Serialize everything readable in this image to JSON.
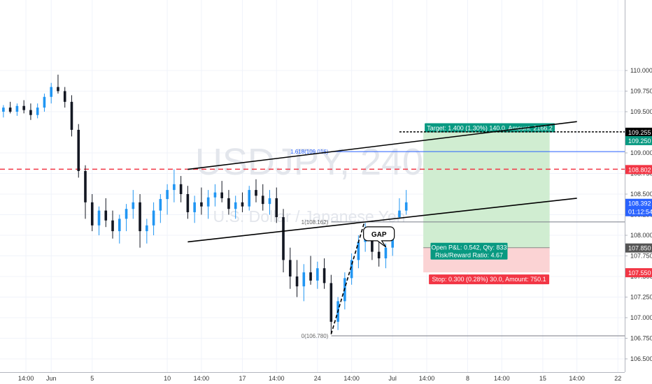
{
  "chart_data": {
    "type": "candlestick",
    "watermark": {
      "symbol": "USDJPY, 240",
      "description": "U.S. Dollar / Japanese Yen"
    },
    "y_axis": {
      "ticks": [
        "110.000",
        "109.750",
        "109.500",
        "109.000",
        "108.750",
        "108.500",
        "108.250",
        "108.000",
        "107.750",
        "107.500",
        "107.250",
        "107.000",
        "106.750",
        "106.500"
      ],
      "tick_values": [
        110.0,
        109.75,
        109.5,
        109.0,
        108.75,
        108.5,
        108.25,
        108.0,
        107.75,
        107.5,
        107.25,
        107.0,
        106.75,
        106.5
      ],
      "ylim": [
        106.5,
        110.1
      ]
    },
    "x_axis": {
      "ticks": [
        {
          "label": "14:00",
          "x": 0.3
        },
        {
          "label": "Jun",
          "x": 4.0
        },
        {
          "label": "5",
          "x": 10.0
        },
        {
          "label": "10",
          "x": 21.0
        },
        {
          "label": "14:00",
          "x": 26.0
        },
        {
          "label": "17",
          "x": 32.0
        },
        {
          "label": "14:00",
          "x": 37.0
        },
        {
          "label": "24",
          "x": 43.0
        },
        {
          "label": "14:00",
          "x": 48.0
        },
        {
          "label": "Jul",
          "x": 54.0
        },
        {
          "label": "14:00",
          "x": 59.0
        },
        {
          "label": "8",
          "x": 65.0
        },
        {
          "label": "14:00",
          "x": 70.0
        },
        {
          "label": "15",
          "x": 76.0
        },
        {
          "label": "14:00",
          "x": 81.0
        },
        {
          "label": "22",
          "x": 87.0
        }
      ],
      "xlim": [
        -3.5,
        88.0
      ]
    },
    "price_labels": [
      {
        "value": 109.255,
        "text": "109.255",
        "color": "#000000"
      },
      {
        "value": 109.25,
        "text": "109.250",
        "color": "#089981"
      },
      {
        "value": 108.802,
        "text": "108.802",
        "color": "#f23645"
      },
      {
        "value": 108.392,
        "text": "108.392",
        "color": "#2962ff"
      },
      {
        "value": 108.28,
        "text": "01:12:54",
        "color": "#2962ff"
      },
      {
        "value": 107.85,
        "text": "107.850",
        "color": "#555555"
      },
      {
        "value": 107.55,
        "text": "107.550",
        "color": "#f23645"
      }
    ],
    "levels": [
      {
        "label": "1.618(109.016)",
        "value": 109.016,
        "from": 45.0,
        "to": 88.0,
        "color": "#2962ff"
      },
      {
        "label": "1(108.162)",
        "value": 108.162,
        "from": 45.0,
        "to": 88.0,
        "color": "#787b86"
      },
      {
        "label": "0(106.780)",
        "value": 106.78,
        "from": 45.0,
        "to": 88.0,
        "color": "#787b86"
      },
      {
        "label": "",
        "value": 108.802,
        "from": -3.5,
        "to": 88.0,
        "color": "#f23645",
        "dashed": true
      },
      {
        "label": "",
        "value": 109.255,
        "from": 55.0,
        "to": 88.0,
        "color": "#000000",
        "dashed": true
      }
    ],
    "trend_lines": [
      {
        "x1": 24.0,
        "y1": 108.8,
        "x2": 81.0,
        "y2": 109.38
      },
      {
        "x1": 24.0,
        "y1": 107.92,
        "x2": 81.0,
        "y2": 108.45
      }
    ],
    "fib_anchor": {
      "x1": 45.0,
      "y1": 106.8,
      "x2": 49.8,
      "y2": 108.14
    },
    "position": {
      "x_from": 58.5,
      "x_to": 77.0,
      "entry": 107.85,
      "target": 109.25,
      "stop": 107.55,
      "target_label": "Target: 1.400 (1.30%) 140.0, Amount: 2166.2",
      "stop_label": "Stop: 0.300 (0.28%) 30.0, Amount: 750.1",
      "pnl_label": "Open P&L: 0.542, Qty: 833",
      "rr_label": "Risk/Reward Ratio: 4.67"
    },
    "callout": {
      "text": "GAP",
      "x": 52.0,
      "y": 108.12
    },
    "candles": [
      [
        -3.0,
        109.5,
        109.58,
        109.43,
        109.55
      ],
      [
        -2.0,
        109.55,
        109.62,
        109.48,
        109.5
      ],
      [
        -1.0,
        109.5,
        109.6,
        109.45,
        109.57
      ],
      [
        0.0,
        109.57,
        109.64,
        109.48,
        109.52
      ],
      [
        1.0,
        109.52,
        109.6,
        109.4,
        109.46
      ],
      [
        2.0,
        109.46,
        109.6,
        109.42,
        109.55
      ],
      [
        3.0,
        109.55,
        109.72,
        109.5,
        109.68
      ],
      [
        4.0,
        109.68,
        109.85,
        109.6,
        109.8
      ],
      [
        5.0,
        109.8,
        109.95,
        109.72,
        109.75
      ],
      [
        6.0,
        109.75,
        109.8,
        109.55,
        109.62
      ],
      [
        7.0,
        109.62,
        109.7,
        109.2,
        109.28
      ],
      [
        8.0,
        109.28,
        109.35,
        108.7,
        108.78
      ],
      [
        9.0,
        108.78,
        108.85,
        108.2,
        108.4
      ],
      [
        10.0,
        108.4,
        108.5,
        108.05,
        108.12
      ],
      [
        11.0,
        108.12,
        108.35,
        108.0,
        108.3
      ],
      [
        12.0,
        108.3,
        108.45,
        108.1,
        108.18
      ],
      [
        13.0,
        108.18,
        108.3,
        107.96,
        108.05
      ],
      [
        14.0,
        108.05,
        108.25,
        107.9,
        108.2
      ],
      [
        15.0,
        108.2,
        108.38,
        108.05,
        108.32
      ],
      [
        16.0,
        108.32,
        108.55,
        108.2,
        108.4
      ],
      [
        17.0,
        108.4,
        108.5,
        107.85,
        108.05
      ],
      [
        18.0,
        108.05,
        108.2,
        107.9,
        108.12
      ],
      [
        19.0,
        108.12,
        108.4,
        108.0,
        108.3
      ],
      [
        20.0,
        108.3,
        108.5,
        108.15,
        108.44
      ],
      [
        21.0,
        108.44,
        108.62,
        108.25,
        108.55
      ],
      [
        22.0,
        108.55,
        108.8,
        108.4,
        108.62
      ],
      [
        23.0,
        108.62,
        108.72,
        108.4,
        108.5
      ],
      [
        24.0,
        108.5,
        108.6,
        108.2,
        108.28
      ],
      [
        25.0,
        108.28,
        108.48,
        108.15,
        108.4
      ],
      [
        26.0,
        108.4,
        108.58,
        108.25,
        108.35
      ],
      [
        27.0,
        108.35,
        108.55,
        108.2,
        108.46
      ],
      [
        28.0,
        108.46,
        108.62,
        108.35,
        108.52
      ],
      [
        29.0,
        108.52,
        108.66,
        108.4,
        108.45
      ],
      [
        30.0,
        108.45,
        108.55,
        108.25,
        108.32
      ],
      [
        31.0,
        108.32,
        108.48,
        108.2,
        108.4
      ],
      [
        32.0,
        108.4,
        108.52,
        108.28,
        108.35
      ],
      [
        33.0,
        108.35,
        108.6,
        108.3,
        108.55
      ],
      [
        34.0,
        108.55,
        108.68,
        108.4,
        108.48
      ],
      [
        35.0,
        108.48,
        108.62,
        108.3,
        108.38
      ],
      [
        36.0,
        108.38,
        108.55,
        108.25,
        108.45
      ],
      [
        37.0,
        108.45,
        108.58,
        108.15,
        108.22
      ],
      [
        38.0,
        108.22,
        108.32,
        107.55,
        107.7
      ],
      [
        39.0,
        107.7,
        107.85,
        107.35,
        107.5
      ],
      [
        40.0,
        107.5,
        107.7,
        107.25,
        107.38
      ],
      [
        41.0,
        107.38,
        107.65,
        107.2,
        107.55
      ],
      [
        42.0,
        107.55,
        107.75,
        107.4,
        107.45
      ],
      [
        43.0,
        107.45,
        107.68,
        107.35,
        107.6
      ],
      [
        44.0,
        107.6,
        107.72,
        107.35,
        107.42
      ],
      [
        45.0,
        107.42,
        107.52,
        106.8,
        106.95
      ],
      [
        46.0,
        106.95,
        107.25,
        106.85,
        107.2
      ],
      [
        47.0,
        107.2,
        107.55,
        107.1,
        107.48
      ],
      [
        48.0,
        107.48,
        107.78,
        107.4,
        107.7
      ],
      [
        49.0,
        107.7,
        108.0,
        107.6,
        107.92
      ],
      [
        50.0,
        107.92,
        108.15,
        107.8,
        107.98
      ],
      [
        51.0,
        107.98,
        108.05,
        107.7,
        107.8
      ],
      [
        52.0,
        107.8,
        107.95,
        107.62,
        107.72
      ],
      [
        53.0,
        107.72,
        107.9,
        107.6,
        107.85
      ],
      [
        54.0,
        107.85,
        108.05,
        107.75,
        108.0
      ],
      [
        55.0,
        108.22,
        108.45,
        108.2,
        108.3
      ],
      [
        56.0,
        108.3,
        108.55,
        108.25,
        108.4
      ]
    ]
  }
}
